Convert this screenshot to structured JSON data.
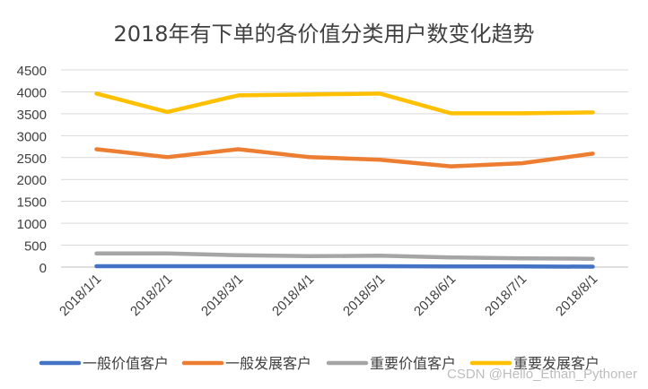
{
  "chart_data": {
    "type": "line",
    "title": "2018年有下单的各价值分类用户数变化趋势",
    "xlabel": "",
    "ylabel": "",
    "ylim": [
      0,
      4500
    ],
    "yticks": [
      0,
      500,
      1000,
      1500,
      2000,
      2500,
      3000,
      3500,
      4000,
      4500
    ],
    "categories": [
      "2018/1/1",
      "2018/2/1",
      "2018/3/1",
      "2018/4/1",
      "2018/5/1",
      "2018/6/1",
      "2018/7/1",
      "2018/8/1"
    ],
    "grid": true,
    "legend_position": "bottom",
    "series": [
      {
        "name": "一般价值客户",
        "color": "#4472C4",
        "values": [
          20,
          20,
          20,
          20,
          20,
          15,
          15,
          10
        ]
      },
      {
        "name": "一般发展客户",
        "color": "#ED7D31",
        "values": [
          2690,
          2510,
          2690,
          2510,
          2450,
          2300,
          2370,
          2590
        ]
      },
      {
        "name": "重要价值客户",
        "color": "#A5A5A5",
        "values": [
          310,
          310,
          270,
          250,
          260,
          220,
          200,
          190
        ]
      },
      {
        "name": "重要发展客户",
        "color": "#FFC000",
        "values": [
          3960,
          3540,
          3920,
          3940,
          3960,
          3510,
          3510,
          3530
        ]
      }
    ]
  },
  "watermark": "CSDN @Hello_Ethan_Pythoner"
}
